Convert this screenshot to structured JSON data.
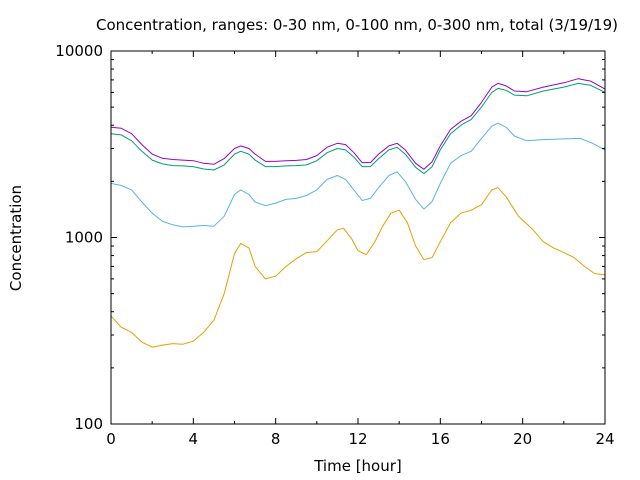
{
  "chart_data": {
    "type": "line",
    "title": "Concentration, ranges: 0-30 nm, 0-100 nm, 0-300 nm, total (3/19/19)",
    "xlabel": "Time [hour]",
    "ylabel": "Concentration",
    "xlim": [
      0,
      24
    ],
    "ylim": [
      100,
      10000
    ],
    "y_scale": "log",
    "grid": false,
    "legend": "none",
    "x_ticks": [
      {
        "value": 0,
        "label": "0"
      },
      {
        "value": 4,
        "label": "4"
      },
      {
        "value": 8,
        "label": "8"
      },
      {
        "value": 12,
        "label": "12"
      },
      {
        "value": 16,
        "label": "16"
      },
      {
        "value": 20,
        "label": "20"
      },
      {
        "value": 24,
        "label": "24"
      }
    ],
    "y_ticks": [
      {
        "value": 100,
        "label": "100"
      },
      {
        "value": 1000,
        "label": "1000"
      },
      {
        "value": 10000,
        "label": "10000"
      }
    ],
    "series": [
      {
        "color": "#e69f00",
        "points": [
          [
            0,
            380
          ],
          [
            0.5,
            330
          ],
          [
            1,
            310
          ],
          [
            1.5,
            275
          ],
          [
            2,
            258
          ],
          [
            2.5,
            265
          ],
          [
            3,
            270
          ],
          [
            3.5,
            268
          ],
          [
            4,
            278
          ],
          [
            4.5,
            310
          ],
          [
            5,
            360
          ],
          [
            5.5,
            500
          ],
          [
            6,
            820
          ],
          [
            6.3,
            930
          ],
          [
            6.7,
            880
          ],
          [
            7,
            700
          ],
          [
            7.5,
            600
          ],
          [
            8,
            620
          ],
          [
            8.5,
            700
          ],
          [
            9,
            770
          ],
          [
            9.5,
            830
          ],
          [
            10,
            840
          ],
          [
            10.5,
            960
          ],
          [
            11,
            1100
          ],
          [
            11.3,
            1120
          ],
          [
            11.7,
            980
          ],
          [
            12,
            850
          ],
          [
            12.4,
            810
          ],
          [
            12.8,
            940
          ],
          [
            13.2,
            1150
          ],
          [
            13.6,
            1350
          ],
          [
            14,
            1400
          ],
          [
            14.4,
            1200
          ],
          [
            14.8,
            900
          ],
          [
            15.2,
            760
          ],
          [
            15.6,
            780
          ],
          [
            16,
            950
          ],
          [
            16.5,
            1200
          ],
          [
            17,
            1350
          ],
          [
            17.5,
            1400
          ],
          [
            18,
            1500
          ],
          [
            18.5,
            1800
          ],
          [
            18.8,
            1850
          ],
          [
            19.2,
            1650
          ],
          [
            19.8,
            1300
          ],
          [
            20.5,
            1100
          ],
          [
            21,
            950
          ],
          [
            21.5,
            880
          ],
          [
            22,
            830
          ],
          [
            22.5,
            780
          ],
          [
            23,
            700
          ],
          [
            23.5,
            640
          ],
          [
            24,
            630
          ]
        ]
      },
      {
        "color": "#56b4e9",
        "points": [
          [
            0,
            1950
          ],
          [
            0.5,
            1900
          ],
          [
            1,
            1800
          ],
          [
            1.5,
            1550
          ],
          [
            2,
            1350
          ],
          [
            2.5,
            1220
          ],
          [
            3,
            1170
          ],
          [
            3.5,
            1140
          ],
          [
            4,
            1150
          ],
          [
            4.5,
            1160
          ],
          [
            5,
            1150
          ],
          [
            5.5,
            1300
          ],
          [
            6,
            1700
          ],
          [
            6.3,
            1800
          ],
          [
            6.7,
            1700
          ],
          [
            7,
            1550
          ],
          [
            7.5,
            1480
          ],
          [
            8,
            1530
          ],
          [
            8.5,
            1600
          ],
          [
            9,
            1620
          ],
          [
            9.5,
            1680
          ],
          [
            10,
            1800
          ],
          [
            10.5,
            2050
          ],
          [
            11,
            2150
          ],
          [
            11.4,
            2050
          ],
          [
            11.8,
            1800
          ],
          [
            12.2,
            1580
          ],
          [
            12.6,
            1620
          ],
          [
            13,
            1850
          ],
          [
            13.5,
            2150
          ],
          [
            13.9,
            2250
          ],
          [
            14.3,
            2000
          ],
          [
            14.8,
            1600
          ],
          [
            15.2,
            1420
          ],
          [
            15.6,
            1560
          ],
          [
            16,
            1950
          ],
          [
            16.5,
            2500
          ],
          [
            17,
            2750
          ],
          [
            17.5,
            2900
          ],
          [
            18,
            3400
          ],
          [
            18.5,
            3950
          ],
          [
            18.8,
            4100
          ],
          [
            19.2,
            3900
          ],
          [
            19.6,
            3500
          ],
          [
            20.2,
            3300
          ],
          [
            21,
            3350
          ],
          [
            22,
            3380
          ],
          [
            22.8,
            3400
          ],
          [
            23.4,
            3200
          ],
          [
            24,
            2950
          ]
        ]
      },
      {
        "color": "#009e73",
        "points": [
          [
            0,
            3600
          ],
          [
            0.5,
            3550
          ],
          [
            1,
            3300
          ],
          [
            1.5,
            2900
          ],
          [
            2,
            2600
          ],
          [
            2.5,
            2480
          ],
          [
            3,
            2430
          ],
          [
            3.5,
            2420
          ],
          [
            4,
            2400
          ],
          [
            4.5,
            2330
          ],
          [
            5,
            2300
          ],
          [
            5.5,
            2450
          ],
          [
            6,
            2800
          ],
          [
            6.3,
            2900
          ],
          [
            6.7,
            2800
          ],
          [
            7,
            2600
          ],
          [
            7.5,
            2400
          ],
          [
            8,
            2400
          ],
          [
            8.5,
            2420
          ],
          [
            9,
            2430
          ],
          [
            9.5,
            2450
          ],
          [
            10,
            2580
          ],
          [
            10.5,
            2850
          ],
          [
            11,
            3000
          ],
          [
            11.4,
            2950
          ],
          [
            11.8,
            2700
          ],
          [
            12.2,
            2400
          ],
          [
            12.6,
            2400
          ],
          [
            13,
            2650
          ],
          [
            13.5,
            2950
          ],
          [
            13.9,
            3050
          ],
          [
            14.3,
            2800
          ],
          [
            14.8,
            2380
          ],
          [
            15.2,
            2200
          ],
          [
            15.6,
            2400
          ],
          [
            16,
            2950
          ],
          [
            16.5,
            3600
          ],
          [
            17,
            4000
          ],
          [
            17.5,
            4300
          ],
          [
            18,
            5000
          ],
          [
            18.5,
            6000
          ],
          [
            18.8,
            6300
          ],
          [
            19.2,
            6150
          ],
          [
            19.6,
            5800
          ],
          [
            20.2,
            5750
          ],
          [
            21,
            6100
          ],
          [
            22,
            6400
          ],
          [
            22.7,
            6700
          ],
          [
            23.3,
            6550
          ],
          [
            24,
            6000
          ]
        ]
      },
      {
        "color": "#9400d3",
        "points": [
          [
            0,
            3900
          ],
          [
            0.5,
            3850
          ],
          [
            1,
            3600
          ],
          [
            1.5,
            3150
          ],
          [
            2,
            2800
          ],
          [
            2.5,
            2660
          ],
          [
            3,
            2620
          ],
          [
            3.5,
            2600
          ],
          [
            4,
            2580
          ],
          [
            4.5,
            2500
          ],
          [
            5,
            2470
          ],
          [
            5.5,
            2650
          ],
          [
            6,
            3000
          ],
          [
            6.3,
            3100
          ],
          [
            6.7,
            3000
          ],
          [
            7,
            2800
          ],
          [
            7.5,
            2560
          ],
          [
            8,
            2560
          ],
          [
            8.5,
            2580
          ],
          [
            9,
            2590
          ],
          [
            9.5,
            2620
          ],
          [
            10,
            2750
          ],
          [
            10.5,
            3050
          ],
          [
            11,
            3200
          ],
          [
            11.4,
            3150
          ],
          [
            11.8,
            2850
          ],
          [
            12.2,
            2520
          ],
          [
            12.6,
            2520
          ],
          [
            13,
            2800
          ],
          [
            13.5,
            3100
          ],
          [
            13.9,
            3200
          ],
          [
            14.3,
            2950
          ],
          [
            14.8,
            2500
          ],
          [
            15.2,
            2320
          ],
          [
            15.6,
            2550
          ],
          [
            16,
            3100
          ],
          [
            16.5,
            3800
          ],
          [
            17,
            4200
          ],
          [
            17.5,
            4500
          ],
          [
            18,
            5300
          ],
          [
            18.5,
            6400
          ],
          [
            18.8,
            6700
          ],
          [
            19.2,
            6500
          ],
          [
            19.6,
            6100
          ],
          [
            20.2,
            6050
          ],
          [
            21,
            6400
          ],
          [
            22,
            6750
          ],
          [
            22.7,
            7100
          ],
          [
            23.3,
            6900
          ],
          [
            24,
            6250
          ]
        ]
      }
    ]
  }
}
